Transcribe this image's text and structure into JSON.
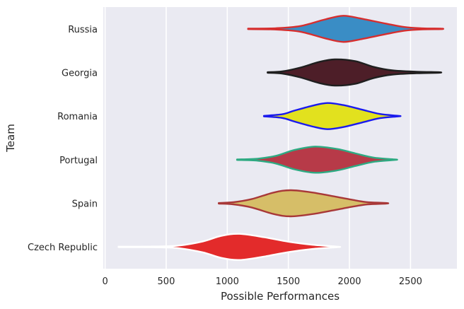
{
  "chart_data": {
    "type": "violin",
    "orientation": "horizontal",
    "xlabel": "Possible Performances",
    "ylabel": "Team",
    "xlim": [
      -15,
      2880
    ],
    "xticks": [
      0,
      500,
      1000,
      1500,
      2000,
      2500
    ],
    "xtick_labels": [
      "0",
      "500",
      "1000",
      "1500",
      "2000",
      "2500"
    ],
    "grid": true,
    "background": "#eaeaf2",
    "categories": [
      "Russia",
      "Georgia",
      "Romania",
      "Portugal",
      "Spain",
      "Czech Republic"
    ],
    "series": [
      {
        "name": "Russia",
        "fill": "#3a8dc5",
        "edge": "#d62e2e",
        "density": [
          [
            1170,
            0.02
          ],
          [
            1400,
            0.05
          ],
          [
            1600,
            0.22
          ],
          [
            1800,
            0.72
          ],
          [
            1950,
            1.0
          ],
          [
            2100,
            0.78
          ],
          [
            2300,
            0.4
          ],
          [
            2450,
            0.14
          ],
          [
            2600,
            0.04
          ],
          [
            2750,
            0.02
          ]
        ]
      },
      {
        "name": "Georgia",
        "fill": "#4d1e28",
        "edge": "#1f1f1f",
        "density": [
          [
            1330,
            0.02
          ],
          [
            1450,
            0.08
          ],
          [
            1600,
            0.38
          ],
          [
            1750,
            0.8
          ],
          [
            1880,
            1.0
          ],
          [
            2050,
            0.86
          ],
          [
            2200,
            0.42
          ],
          [
            2350,
            0.16
          ],
          [
            2550,
            0.06
          ],
          [
            2730,
            0.02
          ]
        ]
      },
      {
        "name": "Romania",
        "fill": "#e2e11e",
        "edge": "#1a1aee",
        "density": [
          [
            1300,
            0.02
          ],
          [
            1450,
            0.14
          ],
          [
            1550,
            0.42
          ],
          [
            1700,
            0.8
          ],
          [
            1820,
            1.0
          ],
          [
            1950,
            0.84
          ],
          [
            2100,
            0.5
          ],
          [
            2250,
            0.16
          ],
          [
            2400,
            0.02
          ]
        ]
      },
      {
        "name": "Portugal",
        "fill": "#b73a48",
        "edge": "#2eaa82",
        "density": [
          [
            1080,
            0.02
          ],
          [
            1250,
            0.08
          ],
          [
            1400,
            0.3
          ],
          [
            1550,
            0.74
          ],
          [
            1720,
            1.0
          ],
          [
            1900,
            0.82
          ],
          [
            2050,
            0.48
          ],
          [
            2200,
            0.16
          ],
          [
            2370,
            0.02
          ]
        ]
      },
      {
        "name": "Spain",
        "fill": "#d6be68",
        "edge": "#a83838",
        "density": [
          [
            930,
            0.02
          ],
          [
            1050,
            0.08
          ],
          [
            1200,
            0.32
          ],
          [
            1380,
            0.82
          ],
          [
            1520,
            1.0
          ],
          [
            1700,
            0.82
          ],
          [
            1900,
            0.48
          ],
          [
            2050,
            0.22
          ],
          [
            2150,
            0.08
          ],
          [
            2300,
            0.02
          ]
        ]
      },
      {
        "name": "Czech Republic",
        "fill": "#e32b2b",
        "edge": "#ffffff",
        "density": [
          [
            110,
            0.02
          ],
          [
            400,
            0.03
          ],
          [
            600,
            0.1
          ],
          [
            800,
            0.42
          ],
          [
            950,
            0.84
          ],
          [
            1100,
            1.0
          ],
          [
            1300,
            0.74
          ],
          [
            1500,
            0.4
          ],
          [
            1700,
            0.16
          ],
          [
            1900,
            0.02
          ]
        ]
      }
    ]
  }
}
